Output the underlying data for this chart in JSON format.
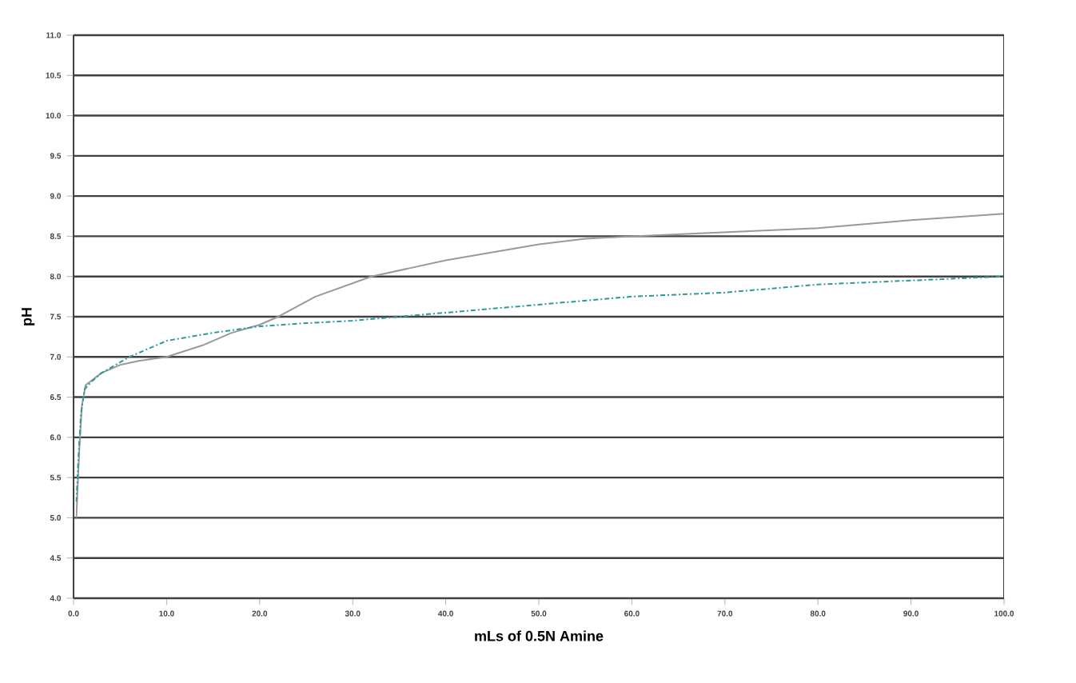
{
  "chart_data": {
    "type": "line",
    "xlabel": "mLs of 0.5N Amine",
    "ylabel": "pH",
    "grid": "y",
    "marker": "none",
    "xlim": [
      0,
      100
    ],
    "ylim": [
      4,
      11
    ],
    "xticks": [
      {
        "value": 0,
        "label": "0.0"
      },
      {
        "value": 10,
        "label": "10.0"
      },
      {
        "value": 20,
        "label": "20.0"
      },
      {
        "value": 30,
        "label": "30.0"
      },
      {
        "value": 40,
        "label": "40.0"
      },
      {
        "value": 50,
        "label": "50.0"
      },
      {
        "value": 60,
        "label": "60.0"
      },
      {
        "value": 70,
        "label": "70.0"
      },
      {
        "value": 80,
        "label": "80.0"
      },
      {
        "value": 90,
        "label": "90.0"
      },
      {
        "value": 100,
        "label": "100.0"
      }
    ],
    "yticks": [
      {
        "value": 4,
        "label": "4.0"
      },
      {
        "value": 4.5,
        "label": "4.5"
      },
      {
        "value": 5,
        "label": "5.0"
      },
      {
        "value": 5.5,
        "label": "5.5"
      },
      {
        "value": 6,
        "label": "6.0"
      },
      {
        "value": 6.5,
        "label": "6.5"
      },
      {
        "value": 7,
        "label": "7.0"
      },
      {
        "value": 7.5,
        "label": "7.5"
      },
      {
        "value": 8,
        "label": "8.0"
      },
      {
        "value": 8.5,
        "label": "8.5"
      },
      {
        "value": 9,
        "label": "9.0"
      },
      {
        "value": 9.5,
        "label": "9.5"
      },
      {
        "value": 10,
        "label": "10.0"
      },
      {
        "value": 10.5,
        "label": "10.5"
      },
      {
        "value": 11,
        "label": "11.0"
      }
    ],
    "series": [
      {
        "color": "#999999",
        "line_style": "solid",
        "x": [
          0.3,
          0.6,
          0.9,
          1.3,
          3,
          5,
          7,
          10,
          14,
          17,
          20,
          22,
          26,
          32,
          36,
          40,
          45,
          50,
          55,
          60,
          70,
          80,
          90,
          100
        ],
        "values": [
          5.0,
          5.8,
          6.4,
          6.65,
          6.8,
          6.9,
          6.95,
          7.0,
          7.15,
          7.3,
          7.4,
          7.5,
          7.75,
          8.0,
          8.1,
          8.2,
          8.3,
          8.4,
          8.47,
          8.5,
          8.55,
          8.6,
          8.7,
          8.78
        ]
      },
      {
        "color": "#2a9a9a",
        "line_style": "dashed",
        "x": [
          0.3,
          0.5,
          0.8,
          1.2,
          2,
          3,
          4.5,
          6,
          8,
          10,
          15,
          20,
          25,
          30,
          40,
          50,
          60,
          70,
          80,
          90,
          100
        ],
        "values": [
          5.2,
          5.7,
          6.3,
          6.6,
          6.7,
          6.8,
          6.9,
          7.0,
          7.1,
          7.2,
          7.3,
          7.38,
          7.42,
          7.45,
          7.55,
          7.65,
          7.75,
          7.8,
          7.9,
          7.95,
          8.0
        ]
      }
    ]
  }
}
